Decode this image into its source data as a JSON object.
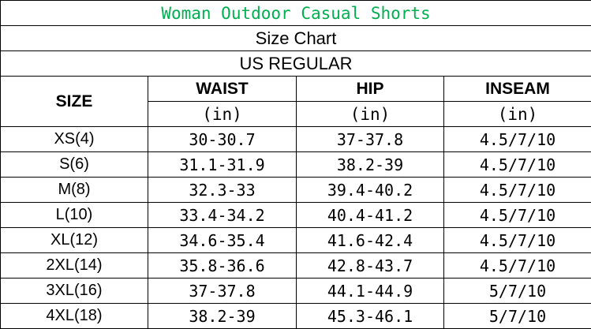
{
  "title": "Woman Outdoor Casual Shorts",
  "subtitle": "Size Chart",
  "region": "US REGULAR",
  "colors": {
    "title": "#00b050"
  },
  "columns": {
    "size": "SIZE",
    "waist": "WAIST",
    "hip": "HIP",
    "inseam": "INSEAM",
    "unit": "(in)"
  },
  "rows": [
    {
      "size": "XS(4)",
      "waist": "30-30.7",
      "hip": "37-37.8",
      "inseam": "4.5/7/10"
    },
    {
      "size": "S(6)",
      "waist": "31.1-31.9",
      "hip": "38.2-39",
      "inseam": "4.5/7/10"
    },
    {
      "size": "M(8)",
      "waist": "32.3-33",
      "hip": "39.4-40.2",
      "inseam": "4.5/7/10"
    },
    {
      "size": "L(10)",
      "waist": "33.4-34.2",
      "hip": "40.4-41.2",
      "inseam": "4.5/7/10"
    },
    {
      "size": "XL(12)",
      "waist": "34.6-35.4",
      "hip": "41.6-42.4",
      "inseam": "4.5/7/10"
    },
    {
      "size": "2XL(14)",
      "waist": "35.8-36.6",
      "hip": "42.8-43.7",
      "inseam": "4.5/7/10"
    },
    {
      "size": "3XL(16)",
      "waist": "37-37.8",
      "hip": "44.1-44.9",
      "inseam": "5/7/10"
    },
    {
      "size": "4XL(18)",
      "waist": "38.2-39",
      "hip": "45.3-46.1",
      "inseam": "5/7/10"
    }
  ]
}
